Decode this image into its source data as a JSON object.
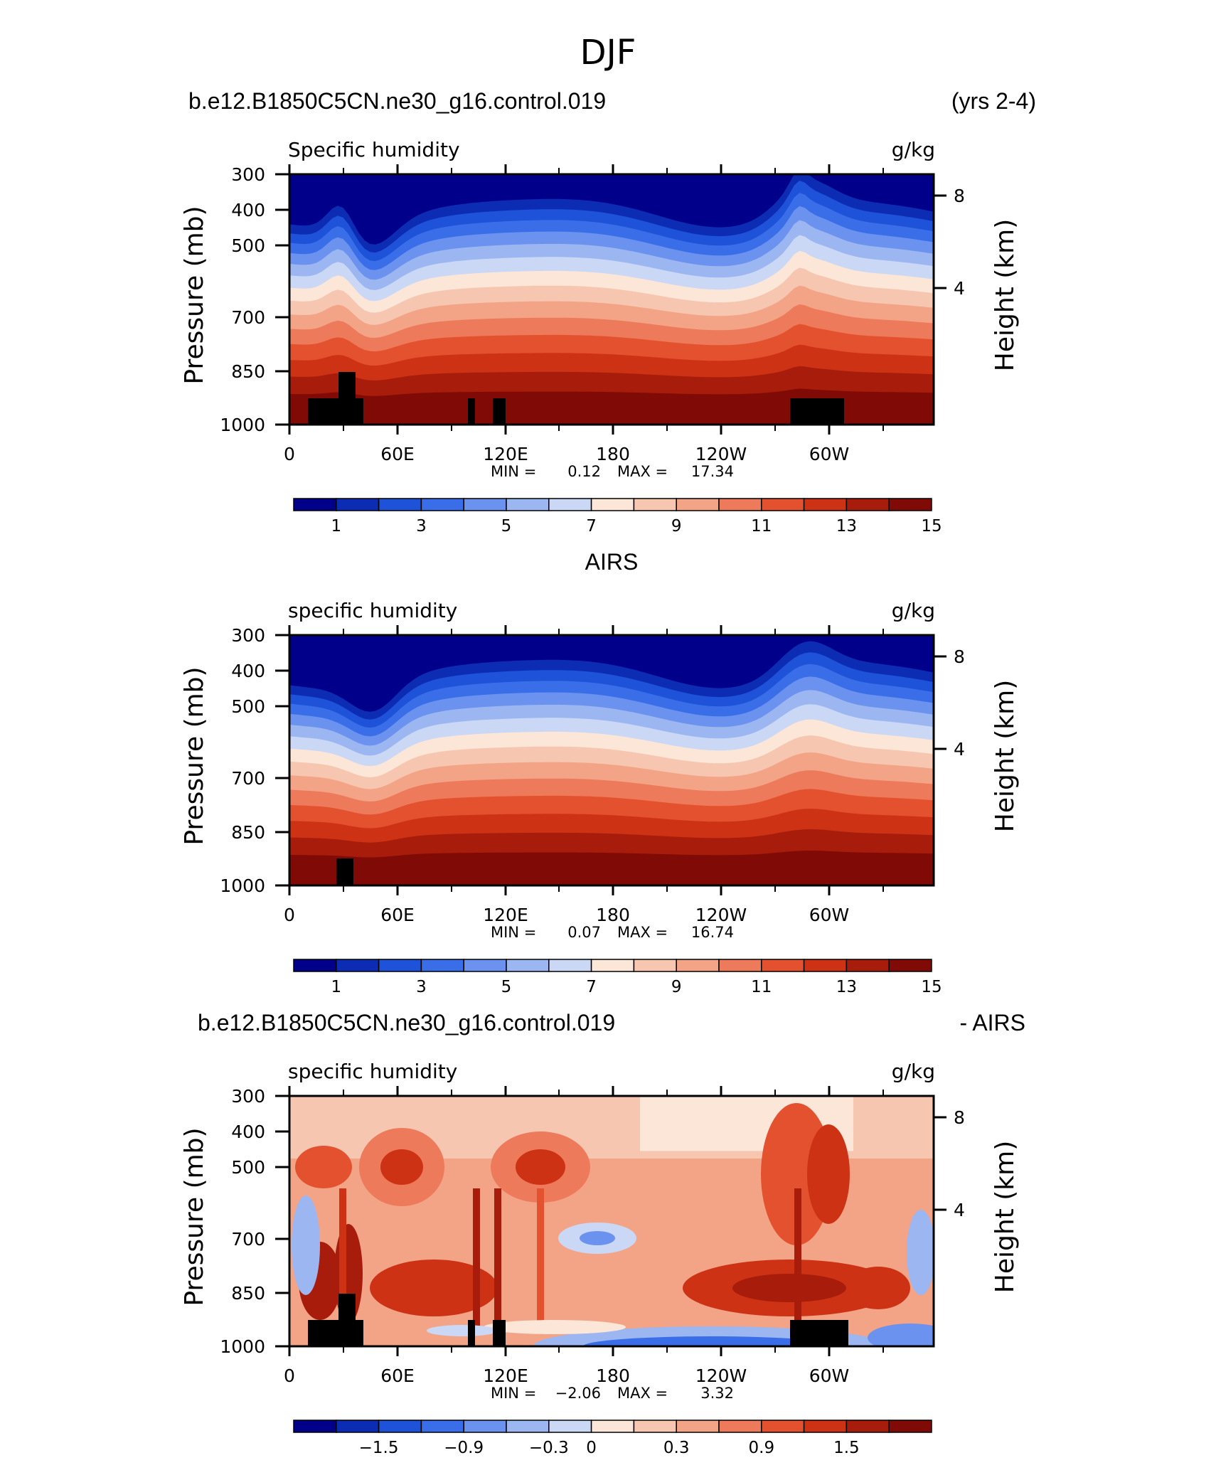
{
  "figure_title": "DJF",
  "chart_data": [
    {
      "type": "heatmap",
      "title_left": "b.e12.B1850C5CN.ne30_g16.control.019",
      "title_right": "(yrs 2-4)",
      "subtitle": "Specific humidity",
      "units": "g/kg",
      "ylabel": "Pressure (mb)",
      "ylabel_right": "Height (km)",
      "y_ticks": [
        "300",
        "400",
        "500",
        "700",
        "850",
        "1000"
      ],
      "y_ticks_right": [
        "8",
        "4"
      ],
      "x_ticks": [
        "0",
        "60E",
        "120E",
        "180",
        "120W",
        "60W"
      ],
      "min_label": "MIN =",
      "min_value": "0.12",
      "max_label": "MAX =",
      "max_value": "17.34",
      "colorbar_labels": [
        "1",
        "3",
        "5",
        "7",
        "9",
        "11",
        "13",
        "15"
      ],
      "colorbar_colors": [
        "#00008a",
        "#0c2cb4",
        "#1e52d8",
        "#3a6ee8",
        "#6a92ee",
        "#9cb6f2",
        "#cad8f6",
        "#fbe6d8",
        "#f6c6b0",
        "#f3a486",
        "#ed7a5a",
        "#e4512f",
        "#cd3215",
        "#a81c0c",
        "#800a05"
      ]
    },
    {
      "type": "heatmap",
      "title_center": "AIRS",
      "subtitle": "specific humidity",
      "units": "g/kg",
      "ylabel": "Pressure (mb)",
      "ylabel_right": "Height (km)",
      "y_ticks": [
        "300",
        "400",
        "500",
        "700",
        "850",
        "1000"
      ],
      "y_ticks_right": [
        "8",
        "4"
      ],
      "x_ticks": [
        "0",
        "60E",
        "120E",
        "180",
        "120W",
        "60W"
      ],
      "min_label": "MIN =",
      "min_value": "0.07",
      "max_label": "MAX =",
      "max_value": "16.74",
      "colorbar_labels": [
        "1",
        "3",
        "5",
        "7",
        "9",
        "11",
        "13",
        "15"
      ],
      "colorbar_colors": [
        "#00008a",
        "#0c2cb4",
        "#1e52d8",
        "#3a6ee8",
        "#6a92ee",
        "#9cb6f2",
        "#cad8f6",
        "#fbe6d8",
        "#f6c6b0",
        "#f3a486",
        "#ed7a5a",
        "#e4512f",
        "#cd3215",
        "#a81c0c",
        "#800a05"
      ]
    },
    {
      "type": "heatmap",
      "title_left": "b.e12.B1850C5CN.ne30_g16.control.019",
      "title_right": "- AIRS",
      "subtitle": "specific humidity",
      "units": "g/kg",
      "ylabel": "Pressure (mb)",
      "ylabel_right": "Height (km)",
      "y_ticks": [
        "300",
        "400",
        "500",
        "700",
        "850",
        "1000"
      ],
      "y_ticks_right": [
        "8",
        "4"
      ],
      "x_ticks": [
        "0",
        "60E",
        "120E",
        "180",
        "120W",
        "60W"
      ],
      "min_label": "MIN =",
      "min_value": "−2.06",
      "max_label": "MAX =",
      "max_value": "3.32",
      "colorbar_labels": [
        "−1.5",
        "−0.9",
        "−0.3",
        "0",
        "0.3",
        "0.9",
        "1.5"
      ],
      "colorbar_colors": [
        "#00008a",
        "#0c2cb4",
        "#1e52d8",
        "#3a6ee8",
        "#6a92ee",
        "#9cb6f2",
        "#cad8f6",
        "#fbe6d8",
        "#f6c6b0",
        "#f3a486",
        "#ed7a5a",
        "#e4512f",
        "#cd3215",
        "#a81c0c",
        "#800a05"
      ]
    }
  ]
}
